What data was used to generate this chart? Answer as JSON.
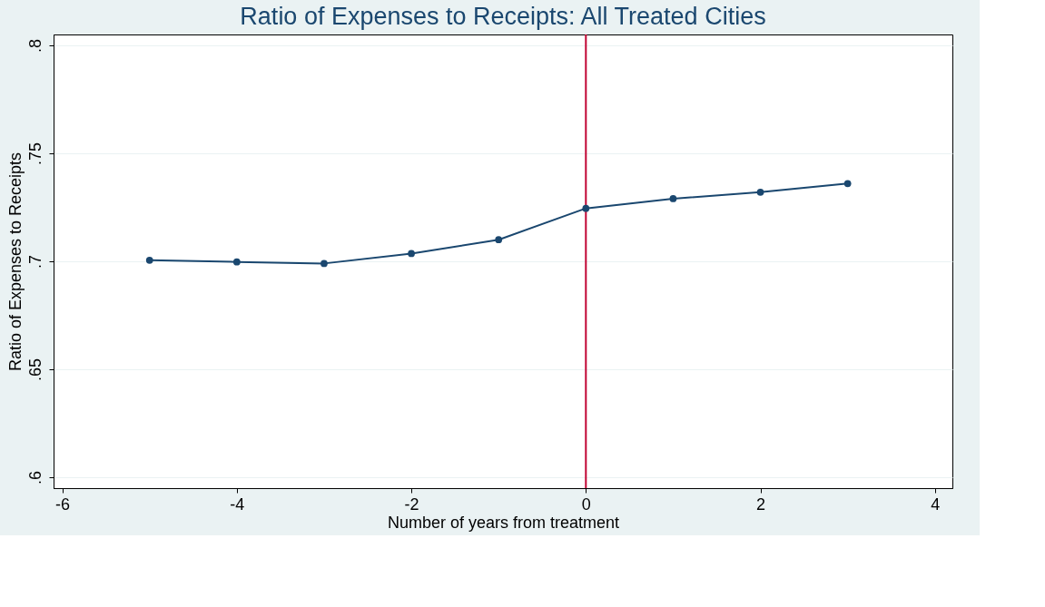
{
  "chart_data": {
    "type": "line",
    "title": "Ratio of Expenses to Receipts: All Treated Cities",
    "xlabel": "Number of years from treatment",
    "ylabel": "Ratio of Expenses to Receipts",
    "x": [
      -5,
      -4,
      -3,
      -2,
      -1,
      0,
      1,
      2,
      3
    ],
    "series": [
      {
        "color": "#1a476f",
        "values": [
          0.7005,
          0.6997,
          0.699,
          0.7036,
          0.71,
          0.7245,
          0.729,
          0.732,
          0.736
        ]
      }
    ],
    "xlim": [
      -6.1,
      4.2
    ],
    "xticks": [
      -6,
      -4,
      -2,
      0,
      2,
      4
    ],
    "ylim": [
      0.595,
      0.805
    ],
    "yticks": [
      {
        "value": 0.6,
        "label": ".6"
      },
      {
        "value": 0.65,
        "label": ".65"
      },
      {
        "value": 0.7,
        "label": ".7"
      },
      {
        "value": 0.75,
        "label": ".75"
      },
      {
        "value": 0.8,
        "label": ".8"
      }
    ],
    "grid": "y",
    "marker": "circle",
    "line_style": "solid",
    "ref_lines": [
      {
        "axis": "x",
        "value": 0,
        "color": "#c10534"
      }
    ]
  }
}
